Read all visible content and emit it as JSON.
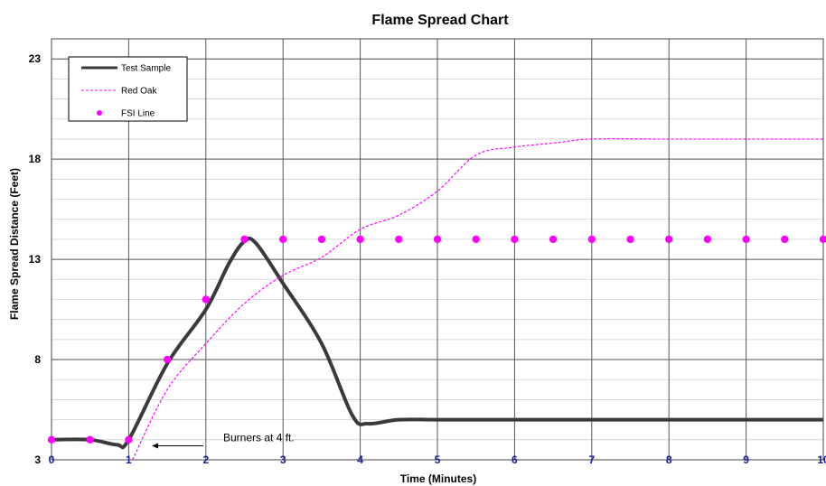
{
  "chart_data": {
    "type": "line",
    "title": "Flame Spread Chart",
    "xlabel": "Time (Minutes)",
    "ylabel": "Flame Spread Distance (Feet)",
    "xlim": [
      0,
      10
    ],
    "ylim": [
      3,
      24
    ],
    "x_ticks": [
      "0",
      "1",
      "2",
      "3",
      "4",
      "5",
      "6",
      "7",
      "8",
      "9",
      "10"
    ],
    "y_ticks": [
      "3",
      "8",
      "13",
      "18",
      "23"
    ],
    "grid": true,
    "legend_position": "top-left",
    "series": [
      {
        "name": "Test Sample",
        "style": "solid",
        "color": "#3a3a3a",
        "points": [
          [
            0,
            4
          ],
          [
            0.5,
            4
          ],
          [
            0.85,
            3.75
          ],
          [
            1,
            4
          ],
          [
            1.5,
            7.8
          ],
          [
            2,
            10.5
          ],
          [
            2.3,
            12.8
          ],
          [
            2.5,
            13.9
          ],
          [
            2.65,
            13.8
          ],
          [
            3,
            11.8
          ],
          [
            3.5,
            8.8
          ],
          [
            3.9,
            5.2
          ],
          [
            4.1,
            4.8
          ],
          [
            4.5,
            5
          ],
          [
            5,
            5
          ],
          [
            6,
            5
          ],
          [
            7,
            5
          ],
          [
            8,
            5
          ],
          [
            9,
            5
          ],
          [
            10,
            5
          ]
        ]
      },
      {
        "name": "Red Oak",
        "style": "dashed",
        "color": "#ff00ff",
        "points": [
          [
            1.05,
            3
          ],
          [
            1.5,
            6.5
          ],
          [
            2,
            8.8
          ],
          [
            2.5,
            10.8
          ],
          [
            3,
            12.2
          ],
          [
            3.5,
            13.1
          ],
          [
            4,
            14.5
          ],
          [
            4.5,
            15.2
          ],
          [
            5,
            16.4
          ],
          [
            5.5,
            18.2
          ],
          [
            6,
            18.6
          ],
          [
            6.5,
            18.8
          ],
          [
            7,
            19
          ],
          [
            8,
            19
          ],
          [
            9,
            19
          ],
          [
            10,
            19
          ]
        ]
      },
      {
        "name": "FSI Line",
        "style": "markers",
        "color": "#ff00ff",
        "points": [
          [
            0,
            4
          ],
          [
            0.5,
            4
          ],
          [
            1,
            4
          ],
          [
            1.5,
            8
          ],
          [
            2,
            11
          ],
          [
            2.5,
            14
          ],
          [
            3,
            14
          ],
          [
            3.5,
            14
          ],
          [
            4,
            14
          ],
          [
            4.5,
            14
          ],
          [
            5,
            14
          ],
          [
            5.5,
            14
          ],
          [
            6,
            14
          ],
          [
            6.5,
            14
          ],
          [
            7,
            14
          ],
          [
            7.5,
            14
          ],
          [
            8,
            14
          ],
          [
            8.5,
            14
          ],
          [
            9,
            14
          ],
          [
            9.5,
            14
          ],
          [
            10,
            14
          ]
        ]
      }
    ],
    "annotations": [
      {
        "text": "Burners at 4 ft.",
        "arrow_to": [
          1.3,
          3.7
        ]
      }
    ]
  }
}
